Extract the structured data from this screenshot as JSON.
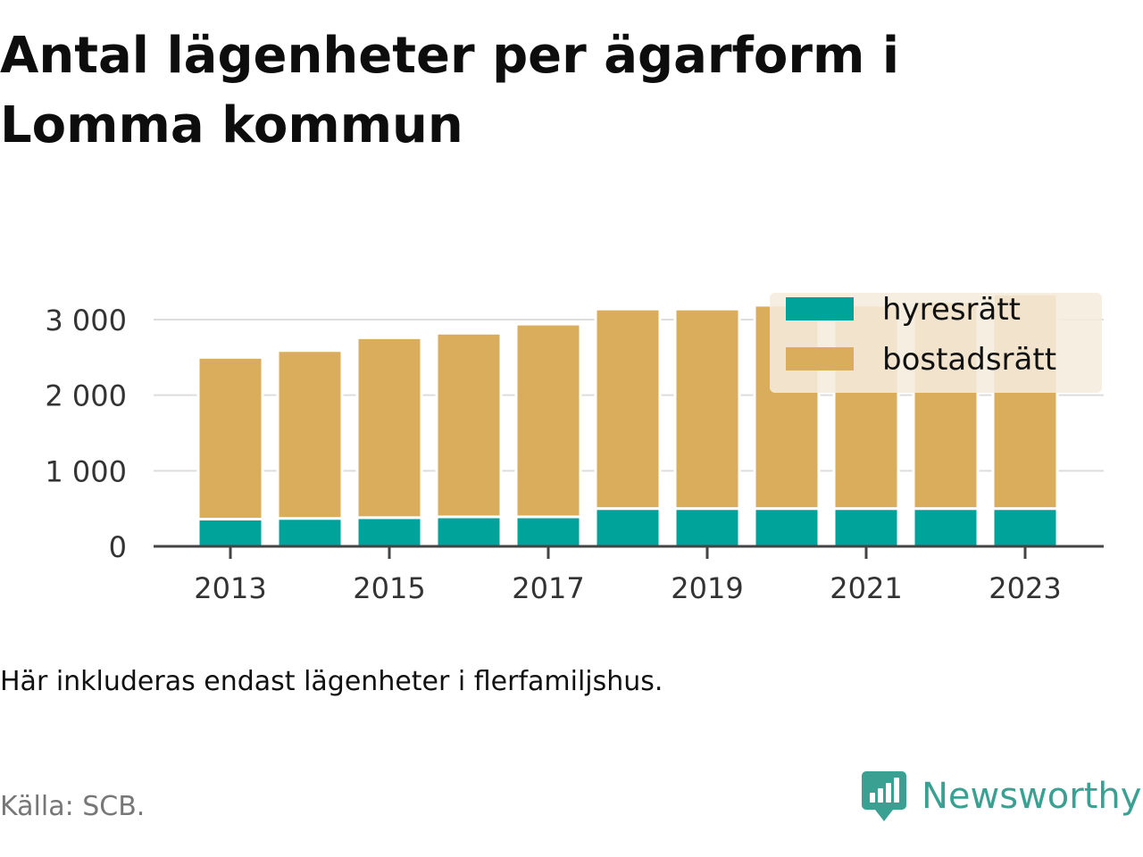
{
  "title": "Antal lägenheter per ägarform i Lomma kommun",
  "note": "Här inkluderas endast lägenheter i flerfamiljshus.",
  "source": "Källa: SCB.",
  "brand": {
    "name": "Newsworthy",
    "icon": "newsworthy-logo-icon"
  },
  "colors": {
    "hyresratt": "#00a39a",
    "bostadsratt": "#d9ad5b",
    "grid": "#dddddd",
    "axis": "#444444",
    "tick_text": "#333333",
    "legend_bg": "#f5ecdc",
    "brand": "#3aa192"
  },
  "chart_data": {
    "type": "bar",
    "stacked": true,
    "categories": [
      "2013",
      "2014",
      "2015",
      "2016",
      "2017",
      "2018",
      "2019",
      "2020",
      "2021",
      "2022",
      "2023"
    ],
    "x_tick_labels": [
      "2013",
      "2015",
      "2017",
      "2019",
      "2021",
      "2023"
    ],
    "y_ticks": [
      0,
      1000,
      2000,
      3000
    ],
    "y_tick_labels": [
      "0",
      "1 000",
      "2 000",
      "3 000"
    ],
    "ylim": [
      0,
      3000
    ],
    "grid": true,
    "legend_position": "top-right",
    "series": [
      {
        "name": "hyresrätt",
        "color": "#00a39a",
        "values": [
          360,
          370,
          380,
          390,
          390,
          500,
          500,
          500,
          500,
          500,
          500
        ]
      },
      {
        "name": "bostadsrätt",
        "color": "#d9ad5b",
        "values": [
          2140,
          2220,
          2380,
          2430,
          2550,
          2640,
          2640,
          2690,
          2690,
          2740,
          2840
        ]
      }
    ]
  }
}
